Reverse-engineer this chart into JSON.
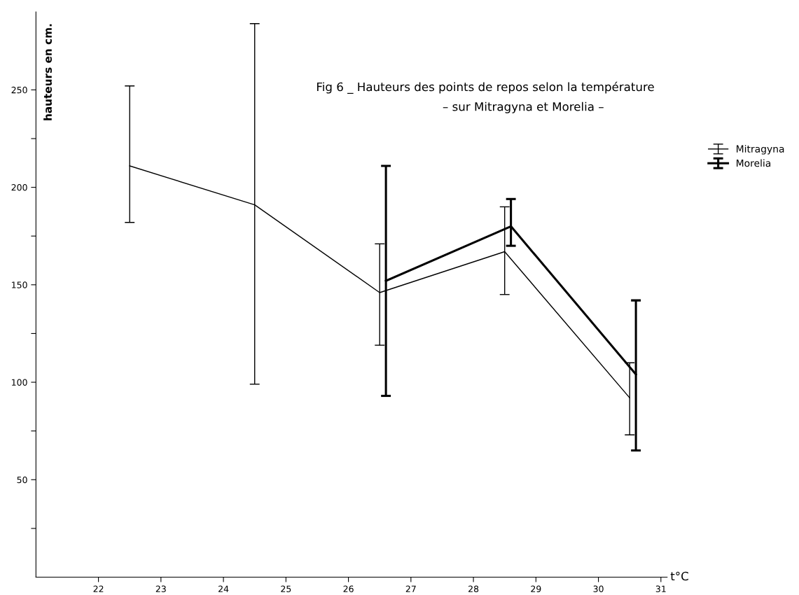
{
  "chart_data": {
    "type": "line",
    "title": "Fig 6 _ Hauteurs des points de repos selon la température",
    "subtitle": "– sur Mitragyna et Morelia –",
    "xlabel": "t°C",
    "ylabel": "hauteurs en cm.",
    "series": [
      {
        "name": "Mitragyna",
        "color": "#000000",
        "x": [
          22.5,
          24.5,
          26.5,
          28.5,
          30.5
        ],
        "values": [
          211,
          191,
          146,
          167,
          92
        ],
        "errors": [
          [
            182,
            252
          ],
          [
            99,
            284
          ],
          [
            119,
            171
          ],
          [
            145,
            190
          ],
          [
            73,
            110
          ]
        ]
      },
      {
        "name": "Morelia",
        "color": "#000000",
        "x": [
          26.6,
          28.6,
          30.6
        ],
        "values": [
          152,
          180,
          104
        ],
        "errors": [
          [
            93,
            211
          ],
          [
            170,
            194
          ],
          [
            65,
            142
          ]
        ]
      }
    ],
    "xlim": [
      21,
      31.1
    ],
    "ylim": [
      0,
      290
    ],
    "xticks": [
      22,
      23,
      24,
      25,
      26,
      27,
      28,
      29,
      30,
      31
    ],
    "yticks": [
      {
        "value": 25,
        "label": null
      },
      50,
      {
        "value": 75,
        "label": null
      },
      100,
      {
        "value": 125,
        "label": null
      },
      150,
      {
        "value": 175,
        "label": null
      },
      200,
      {
        "value": 225,
        "label": null
      },
      250
    ],
    "grid": false,
    "legend": "top right",
    "marker": "none",
    "line_style": "solid"
  }
}
